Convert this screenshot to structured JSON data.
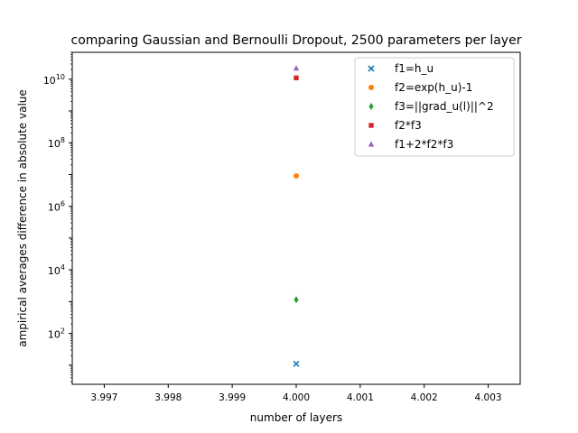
{
  "chart_data": {
    "type": "scatter",
    "title": "comparing Gaussian and Bernoulli Dropout, 2500 parameters per layer",
    "xlabel": "number of layers",
    "ylabel": "ampirical averages difference in absolute value",
    "x_ticks": [
      3.997,
      3.998,
      3.999,
      4.0,
      4.001,
      4.002,
      4.003
    ],
    "x_tick_labels": [
      "3.997",
      "3.998",
      "3.999",
      "4.000",
      "4.001",
      "4.002",
      "4.003"
    ],
    "xlim": [
      3.9965,
      4.0035
    ],
    "y_scale": "log",
    "y_ticks": [
      100,
      10000,
      1000000,
      100000000,
      10000000000
    ],
    "y_tick_labels": [
      "10^2",
      "10^4",
      "10^6",
      "10^8",
      "10^10"
    ],
    "ylim": [
      2.5,
      70000000000
    ],
    "grid": false,
    "legend_position": "top-right",
    "series": [
      {
        "name": "f1=h_u",
        "marker": "x",
        "color": "#1f77b4",
        "x": [
          4.0
        ],
        "y": [
          11
        ]
      },
      {
        "name": "f2=exp(h_u)-1",
        "marker": "circle",
        "color": "#ff7f0e",
        "x": [
          4.0
        ],
        "y": [
          9000000
        ]
      },
      {
        "name": "f3=||grad_u(l)||^2",
        "marker": "diamond",
        "color": "#2ca02c",
        "x": [
          4.0
        ],
        "y": [
          1150
        ]
      },
      {
        "name": "f2*f3",
        "marker": "square",
        "color": "#d62728",
        "x": [
          4.0
        ],
        "y": [
          11000000000
        ]
      },
      {
        "name": "f1+2*f2*f3",
        "marker": "triangle",
        "color": "#9467bd",
        "x": [
          4.0
        ],
        "y": [
          22000000000
        ]
      }
    ]
  }
}
